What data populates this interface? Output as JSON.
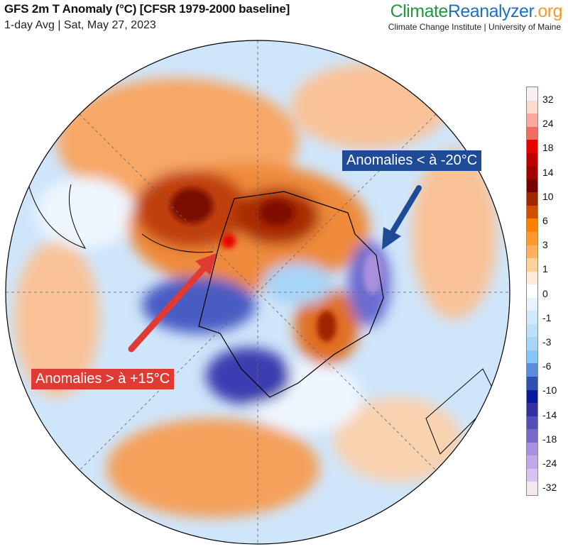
{
  "header": {
    "title": "GFS 2m T Anomaly (°C) [CFSR 1979-2000 baseline]",
    "subtitle": "1-day Avg | Sat, May 27, 2023"
  },
  "brand": {
    "climate": "Climate",
    "reanalyzer": "Reanalyzer",
    "org": ".org",
    "institute": "Climate Change Institute | University of Maine"
  },
  "annotations": {
    "cold": {
      "text": "Anomalies < à -20°C",
      "color": "#1f4a96"
    },
    "warm": {
      "text": "Anomalies > à +15°C",
      "color": "#e03a34"
    }
  },
  "colorbar": {
    "ticks": [
      "32",
      "24",
      "18",
      "14",
      "10",
      "6",
      "3",
      "1",
      "0",
      "-1",
      "-3",
      "-6",
      "-10",
      "-14",
      "-18",
      "-24",
      "-32"
    ],
    "colors": [
      "#f8eef4",
      "#fbdccc",
      "#f9a8a0",
      "#f06c60",
      "#e60000",
      "#c00000",
      "#a00000",
      "#780000",
      "#a02800",
      "#d05000",
      "#ff8000",
      "#ff9a30",
      "#ffb060",
      "#ffd09a",
      "#ffebd8",
      "#ffffff",
      "#e8f3ff",
      "#d2e8fc",
      "#bce0fa",
      "#a8d4f8",
      "#88c4f4",
      "#5a8cd8",
      "#3050b0",
      "#0a1a98",
      "#3030a0",
      "#5050b8",
      "#7868c8",
      "#a890dc",
      "#c0a8e8",
      "#d8c4ee",
      "#f4e8f0"
    ]
  },
  "map": {
    "projection": "south-polar-stereographic"
  }
}
